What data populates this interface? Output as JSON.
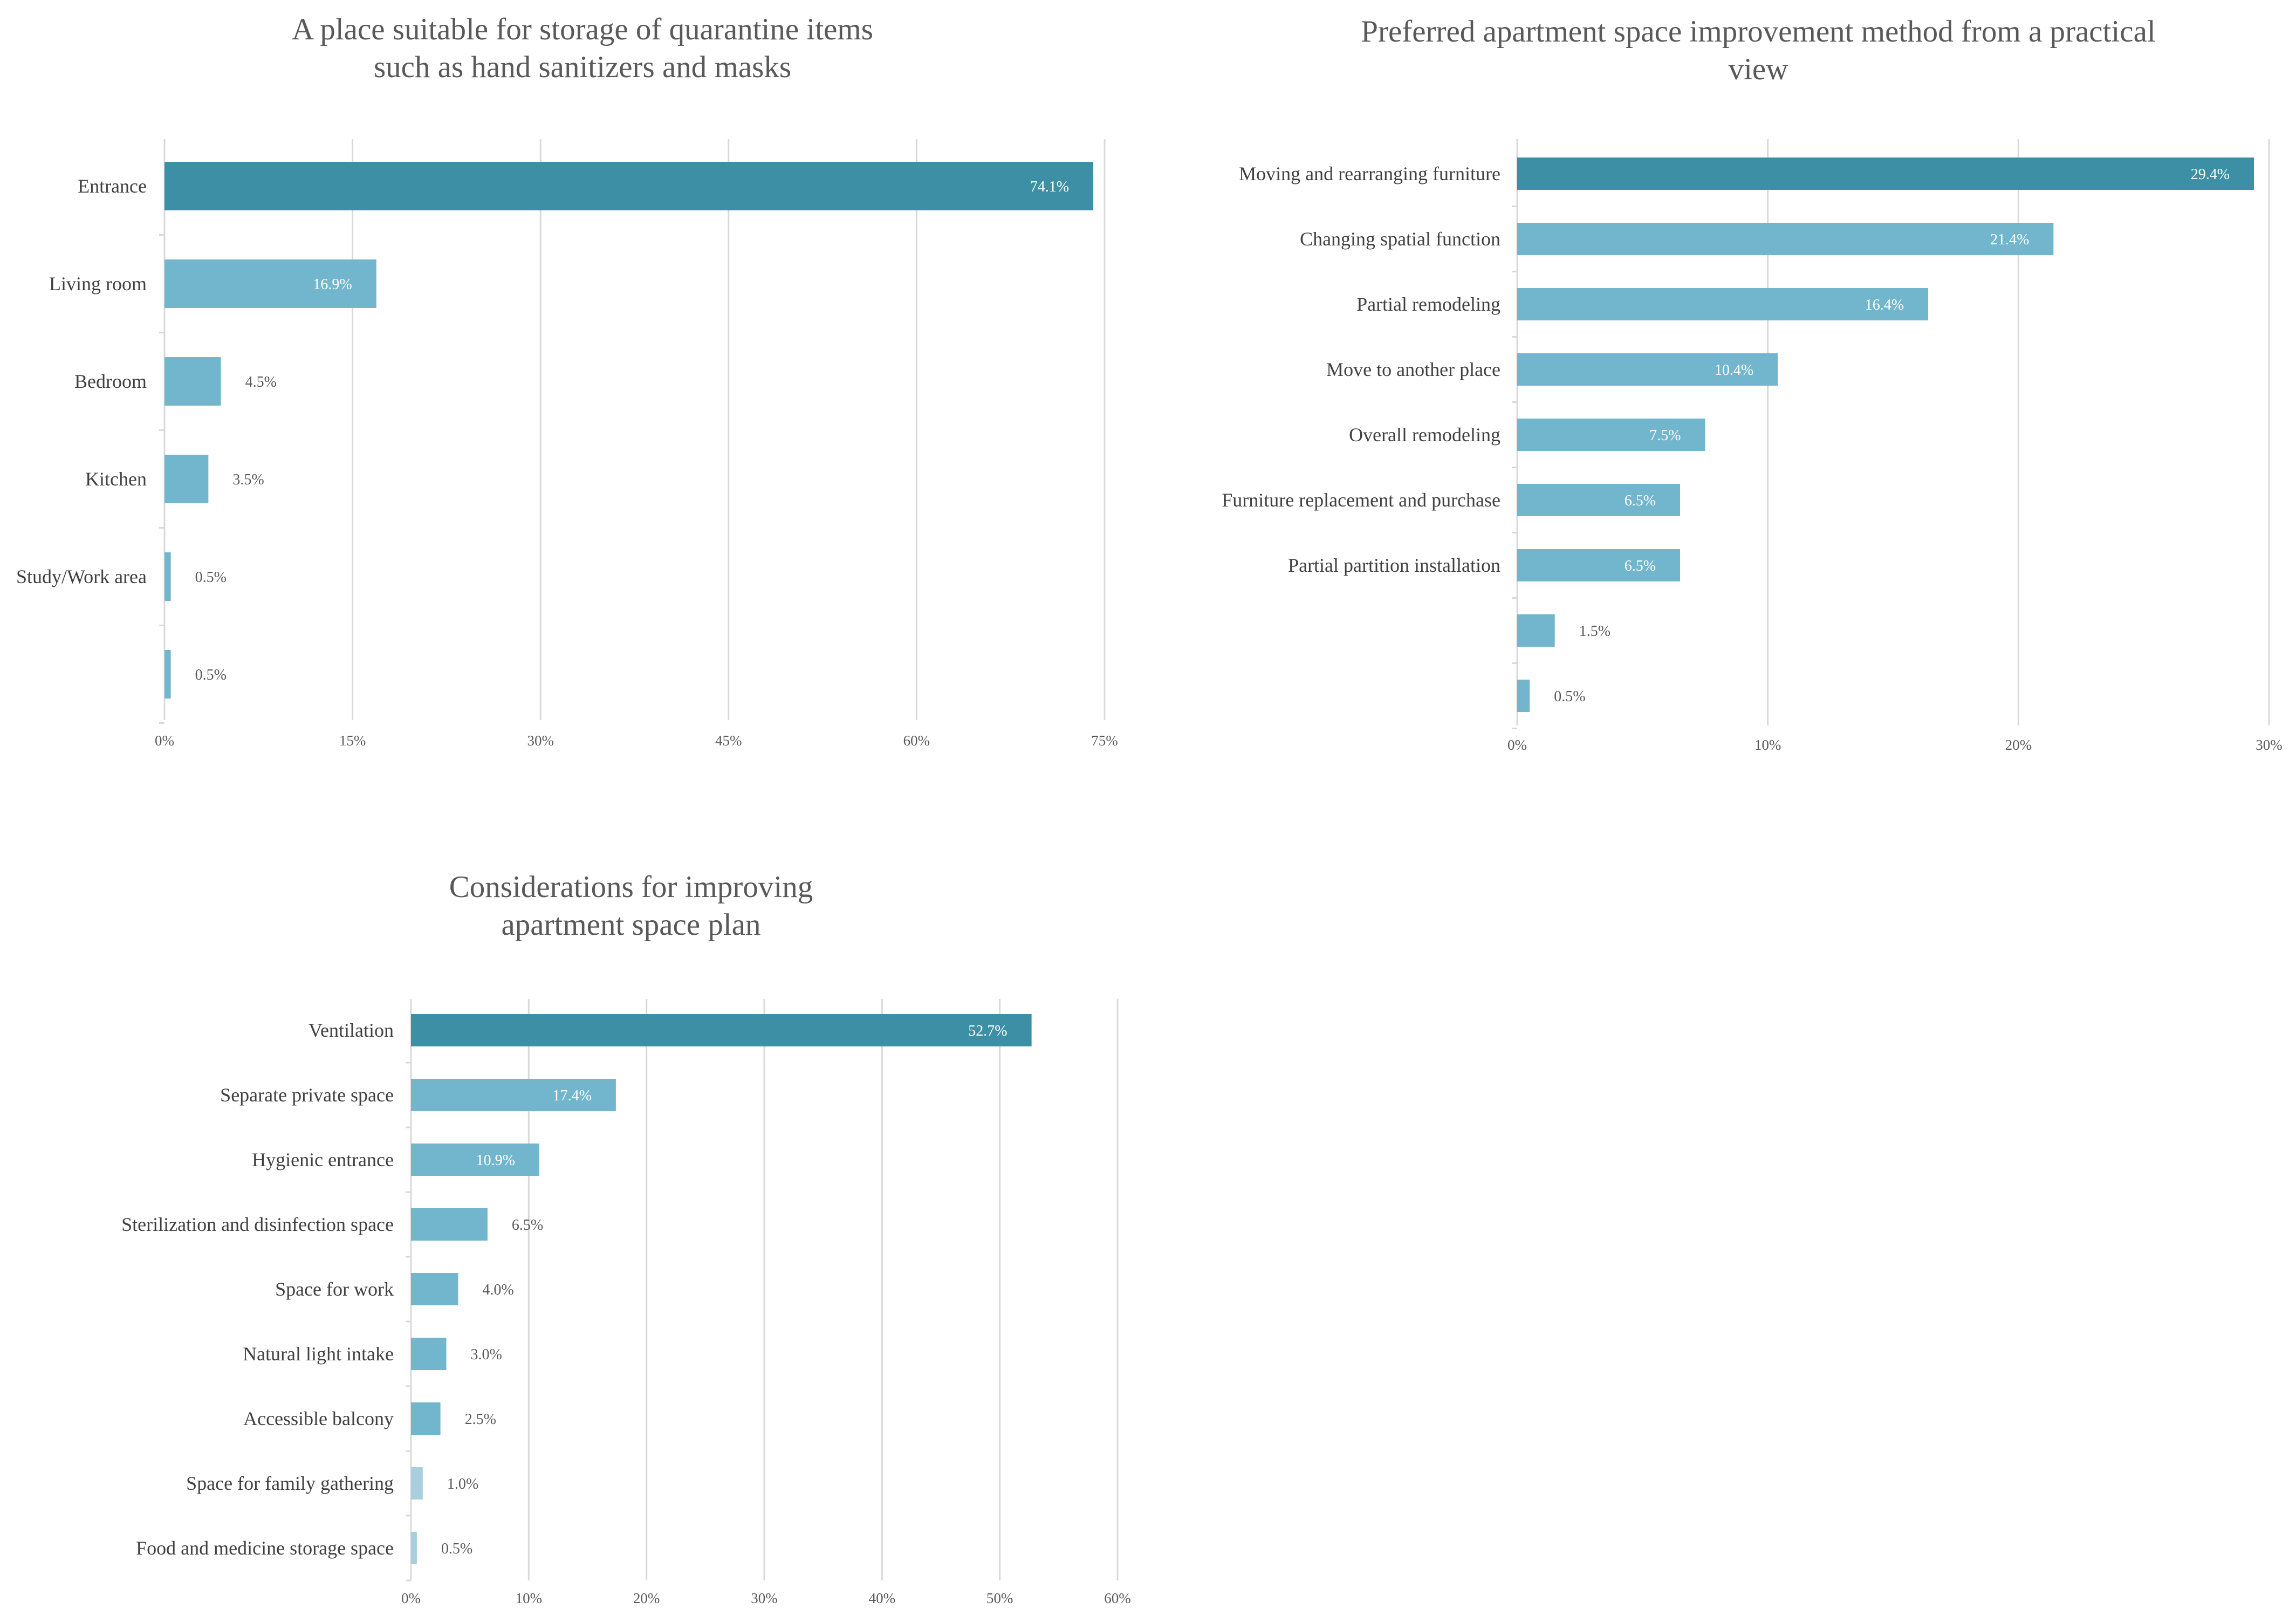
{
  "colors": {
    "top_bar": "#3D8FA6",
    "bar": "#72B6CD",
    "light_bar": "#A9CFDE",
    "grid": "#D9D9D9",
    "axis_text": "#595959",
    "label_text": "#404040"
  },
  "chart_data": [
    {
      "type": "bar",
      "orientation": "horizontal",
      "title": "A place suitable for storage of quarantine items\nsuch as hand sanitizers and masks",
      "categories": [
        "Entrance",
        "Living room",
        "Bedroom",
        "Kitchen",
        "Study/Work area",
        ""
      ],
      "values": [
        74.1,
        16.9,
        4.5,
        3.5,
        0.5,
        0.5
      ],
      "value_labels": [
        "74.1%",
        "16.9%",
        "4.5%",
        "3.5%",
        "0.5%",
        "0.5%"
      ],
      "xlim": [
        0,
        75
      ],
      "ticks": [
        0,
        15,
        30,
        45,
        60,
        75
      ],
      "tick_labels": [
        "0%",
        "15%",
        "30%",
        "45%",
        "60%",
        "75%"
      ],
      "xlabel": "",
      "ylabel": "",
      "grid": true,
      "legend": "none"
    },
    {
      "type": "bar",
      "orientation": "horizontal",
      "title": "Preferred apartment space improvement method from a practical\nview",
      "categories": [
        "Moving and rearranging furniture",
        "Changing spatial function",
        "Partial remodeling",
        "Move to another place",
        "Overall remodeling",
        "Furniture replacement and purchase",
        "Partial partition installation",
        "",
        ""
      ],
      "values": [
        29.4,
        21.4,
        16.4,
        10.4,
        7.5,
        6.5,
        6.5,
        1.5,
        0.5
      ],
      "value_labels": [
        "29.4%",
        "21.4%",
        "16.4%",
        "10.4%",
        "7.5%",
        "6.5%",
        "6.5%",
        "1.5%",
        "0.5%"
      ],
      "xlim": [
        0,
        30
      ],
      "ticks": [
        0,
        10,
        20,
        30
      ],
      "tick_labels": [
        "0%",
        "10%",
        "20%",
        "30%"
      ],
      "xlabel": "",
      "ylabel": "",
      "grid": true,
      "legend": "none"
    },
    {
      "type": "bar",
      "orientation": "horizontal",
      "title": "Considerations for improving\napartment space plan",
      "categories": [
        "Ventilation",
        "Separate private space",
        "Hygienic entrance",
        "Sterilization and disinfection space",
        "Space for work",
        "Natural light intake",
        "Accessible balcony",
        "Space for family gathering",
        "Food and medicine storage space"
      ],
      "values": [
        52.7,
        17.4,
        10.9,
        6.5,
        4.0,
        3.0,
        2.5,
        1.0,
        0.5
      ],
      "value_labels": [
        "52.7%",
        "17.4%",
        "10.9%",
        "6.5%",
        "4.0%",
        "3.0%",
        "2.5%",
        "1.0%",
        "0.5%"
      ],
      "xlim": [
        0,
        60
      ],
      "ticks": [
        0,
        10,
        20,
        30,
        40,
        50,
        60
      ],
      "tick_labels": [
        "0%",
        "10%",
        "20%",
        "30%",
        "40%",
        "50%",
        "60%"
      ],
      "xlabel": "",
      "ylabel": "",
      "grid": true,
      "legend": "none"
    }
  ]
}
